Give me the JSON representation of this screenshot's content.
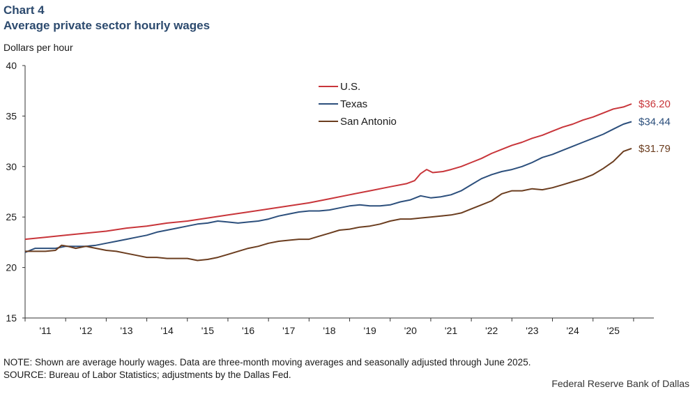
{
  "header": {
    "chart_number": "Chart 4",
    "title": "Average private sector hourly wages"
  },
  "footer": {
    "note": "NOTE: Shown are average hourly wages. Data are three-month moving averages and seasonally adjusted through June 2025.",
    "source": "SOURCE: Bureau of Labor Statistics; adjustments by the Dallas Fed.",
    "credit": "Federal Reserve Bank of Dallas"
  },
  "chart_data": {
    "type": "line",
    "title": "Average private sector hourly wages",
    "xlabel": "",
    "ylabel": "Dollars per hour",
    "ylim": [
      15,
      40
    ],
    "yticks": [
      15,
      20,
      25,
      30,
      35,
      40
    ],
    "xlim": [
      2010.5,
      2026.0
    ],
    "xticks": [
      {
        "label": "'11",
        "x": 2011.0
      },
      {
        "label": "'12",
        "x": 2012.0
      },
      {
        "label": "'13",
        "x": 2013.0
      },
      {
        "label": "'14",
        "x": 2014.0
      },
      {
        "label": "'15",
        "x": 2015.0
      },
      {
        "label": "'16",
        "x": 2016.0
      },
      {
        "label": "'17",
        "x": 2017.0
      },
      {
        "label": "'18",
        "x": 2018.0
      },
      {
        "label": "'19",
        "x": 2019.0
      },
      {
        "label": "'20",
        "x": 2020.0
      },
      {
        "label": "'21",
        "x": 2021.0
      },
      {
        "label": "'22",
        "x": 2022.0
      },
      {
        "label": "'23",
        "x": 2023.0
      },
      {
        "label": "'24",
        "x": 2024.0
      },
      {
        "label": "'25",
        "x": 2025.0
      }
    ],
    "grid": false,
    "legend_position": "top-center",
    "series": [
      {
        "name": "U.S.",
        "color": "#c8353a",
        "end_label": "$36.20",
        "points": [
          [
            2010.5,
            22.8
          ],
          [
            2011.0,
            23.0
          ],
          [
            2011.5,
            23.2
          ],
          [
            2012.0,
            23.4
          ],
          [
            2012.5,
            23.6
          ],
          [
            2013.0,
            23.9
          ],
          [
            2013.5,
            24.1
          ],
          [
            2014.0,
            24.4
          ],
          [
            2014.5,
            24.6
          ],
          [
            2015.0,
            24.9
          ],
          [
            2015.5,
            25.2
          ],
          [
            2016.0,
            25.5
          ],
          [
            2016.5,
            25.8
          ],
          [
            2017.0,
            26.1
          ],
          [
            2017.5,
            26.4
          ],
          [
            2018.0,
            26.8
          ],
          [
            2018.5,
            27.2
          ],
          [
            2019.0,
            27.6
          ],
          [
            2019.5,
            28.0
          ],
          [
            2019.9,
            28.3
          ],
          [
            2020.1,
            28.6
          ],
          [
            2020.25,
            29.3
          ],
          [
            2020.4,
            29.7
          ],
          [
            2020.55,
            29.4
          ],
          [
            2020.8,
            29.5
          ],
          [
            2021.0,
            29.7
          ],
          [
            2021.25,
            30.0
          ],
          [
            2021.5,
            30.4
          ],
          [
            2021.75,
            30.8
          ],
          [
            2022.0,
            31.3
          ],
          [
            2022.25,
            31.7
          ],
          [
            2022.5,
            32.1
          ],
          [
            2022.75,
            32.4
          ],
          [
            2023.0,
            32.8
          ],
          [
            2023.25,
            33.1
          ],
          [
            2023.5,
            33.5
          ],
          [
            2023.75,
            33.9
          ],
          [
            2024.0,
            34.2
          ],
          [
            2024.25,
            34.6
          ],
          [
            2024.5,
            34.9
          ],
          [
            2024.75,
            35.3
          ],
          [
            2025.0,
            35.7
          ],
          [
            2025.25,
            35.9
          ],
          [
            2025.45,
            36.2
          ]
        ]
      },
      {
        "name": "Texas",
        "color": "#2c4f7c",
        "end_label": "$34.44",
        "points": [
          [
            2010.5,
            21.5
          ],
          [
            2010.75,
            21.9
          ],
          [
            2011.0,
            21.9
          ],
          [
            2011.25,
            21.9
          ],
          [
            2011.5,
            22.1
          ],
          [
            2011.75,
            22.1
          ],
          [
            2012.0,
            22.1
          ],
          [
            2012.25,
            22.2
          ],
          [
            2012.5,
            22.4
          ],
          [
            2012.75,
            22.6
          ],
          [
            2013.0,
            22.8
          ],
          [
            2013.25,
            23.0
          ],
          [
            2013.5,
            23.2
          ],
          [
            2013.75,
            23.5
          ],
          [
            2014.0,
            23.7
          ],
          [
            2014.25,
            23.9
          ],
          [
            2014.5,
            24.1
          ],
          [
            2014.75,
            24.3
          ],
          [
            2015.0,
            24.4
          ],
          [
            2015.25,
            24.6
          ],
          [
            2015.5,
            24.5
          ],
          [
            2015.75,
            24.4
          ],
          [
            2016.0,
            24.5
          ],
          [
            2016.25,
            24.6
          ],
          [
            2016.5,
            24.8
          ],
          [
            2016.75,
            25.1
          ],
          [
            2017.0,
            25.3
          ],
          [
            2017.25,
            25.5
          ],
          [
            2017.5,
            25.6
          ],
          [
            2017.75,
            25.6
          ],
          [
            2018.0,
            25.7
          ],
          [
            2018.25,
            25.9
          ],
          [
            2018.5,
            26.1
          ],
          [
            2018.75,
            26.2
          ],
          [
            2019.0,
            26.1
          ],
          [
            2019.25,
            26.1
          ],
          [
            2019.5,
            26.2
          ],
          [
            2019.75,
            26.5
          ],
          [
            2020.0,
            26.7
          ],
          [
            2020.25,
            27.1
          ],
          [
            2020.5,
            26.9
          ],
          [
            2020.75,
            27.0
          ],
          [
            2021.0,
            27.2
          ],
          [
            2021.25,
            27.6
          ],
          [
            2021.5,
            28.2
          ],
          [
            2021.75,
            28.8
          ],
          [
            2022.0,
            29.2
          ],
          [
            2022.25,
            29.5
          ],
          [
            2022.5,
            29.7
          ],
          [
            2022.75,
            30.0
          ],
          [
            2023.0,
            30.4
          ],
          [
            2023.25,
            30.9
          ],
          [
            2023.5,
            31.2
          ],
          [
            2023.75,
            31.6
          ],
          [
            2024.0,
            32.0
          ],
          [
            2024.25,
            32.4
          ],
          [
            2024.5,
            32.8
          ],
          [
            2024.75,
            33.2
          ],
          [
            2025.0,
            33.7
          ],
          [
            2025.25,
            34.2
          ],
          [
            2025.45,
            34.44
          ]
        ]
      },
      {
        "name": "San Antonio",
        "color": "#6b3d1f",
        "end_label": "$31.79",
        "points": [
          [
            2010.5,
            21.6
          ],
          [
            2010.75,
            21.6
          ],
          [
            2011.0,
            21.6
          ],
          [
            2011.25,
            21.7
          ],
          [
            2011.4,
            22.2
          ],
          [
            2011.55,
            22.1
          ],
          [
            2011.75,
            21.9
          ],
          [
            2012.0,
            22.1
          ],
          [
            2012.25,
            21.9
          ],
          [
            2012.5,
            21.7
          ],
          [
            2012.75,
            21.6
          ],
          [
            2013.0,
            21.4
          ],
          [
            2013.25,
            21.2
          ],
          [
            2013.5,
            21.0
          ],
          [
            2013.75,
            21.0
          ],
          [
            2014.0,
            20.9
          ],
          [
            2014.25,
            20.9
          ],
          [
            2014.5,
            20.9
          ],
          [
            2014.75,
            20.7
          ],
          [
            2015.0,
            20.8
          ],
          [
            2015.25,
            21.0
          ],
          [
            2015.5,
            21.3
          ],
          [
            2015.75,
            21.6
          ],
          [
            2016.0,
            21.9
          ],
          [
            2016.25,
            22.1
          ],
          [
            2016.5,
            22.4
          ],
          [
            2016.75,
            22.6
          ],
          [
            2017.0,
            22.7
          ],
          [
            2017.25,
            22.8
          ],
          [
            2017.5,
            22.8
          ],
          [
            2017.75,
            23.1
          ],
          [
            2018.0,
            23.4
          ],
          [
            2018.25,
            23.7
          ],
          [
            2018.5,
            23.8
          ],
          [
            2018.75,
            24.0
          ],
          [
            2019.0,
            24.1
          ],
          [
            2019.25,
            24.3
          ],
          [
            2019.5,
            24.6
          ],
          [
            2019.75,
            24.8
          ],
          [
            2020.0,
            24.8
          ],
          [
            2020.25,
            24.9
          ],
          [
            2020.5,
            25.0
          ],
          [
            2020.75,
            25.1
          ],
          [
            2021.0,
            25.2
          ],
          [
            2021.25,
            25.4
          ],
          [
            2021.5,
            25.8
          ],
          [
            2021.75,
            26.2
          ],
          [
            2022.0,
            26.6
          ],
          [
            2022.25,
            27.3
          ],
          [
            2022.5,
            27.6
          ],
          [
            2022.75,
            27.6
          ],
          [
            2023.0,
            27.8
          ],
          [
            2023.25,
            27.7
          ],
          [
            2023.5,
            27.9
          ],
          [
            2023.75,
            28.2
          ],
          [
            2024.0,
            28.5
          ],
          [
            2024.25,
            28.8
          ],
          [
            2024.5,
            29.2
          ],
          [
            2024.75,
            29.8
          ],
          [
            2025.0,
            30.5
          ],
          [
            2025.25,
            31.5
          ],
          [
            2025.45,
            31.79
          ]
        ]
      }
    ]
  }
}
